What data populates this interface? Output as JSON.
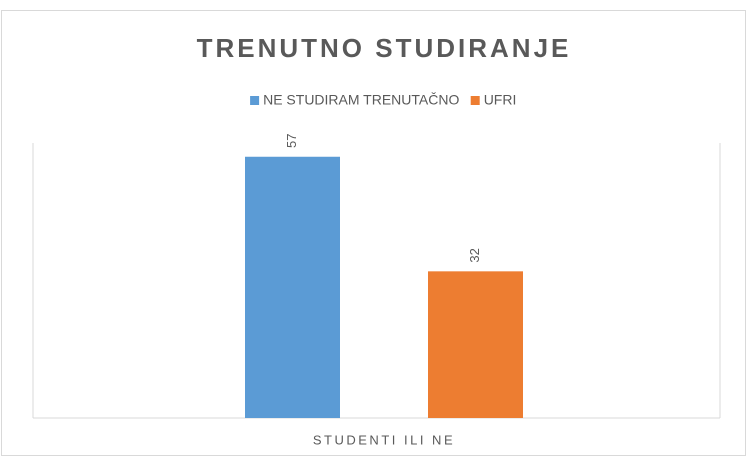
{
  "chart_data": {
    "type": "bar",
    "title": "TRENUTNO STUDIRANJE",
    "categories": [
      "STUDENTI ILI NE"
    ],
    "series": [
      {
        "name": "NE STUDIRAM TRENUTAČNO",
        "color": "#5b9bd5",
        "values": [
          57
        ]
      },
      {
        "name": "UFRI",
        "color": "#ed7d31",
        "values": [
          32
        ]
      }
    ],
    "ylim": [
      0,
      60
    ],
    "legend": "top",
    "data_labels": true
  }
}
